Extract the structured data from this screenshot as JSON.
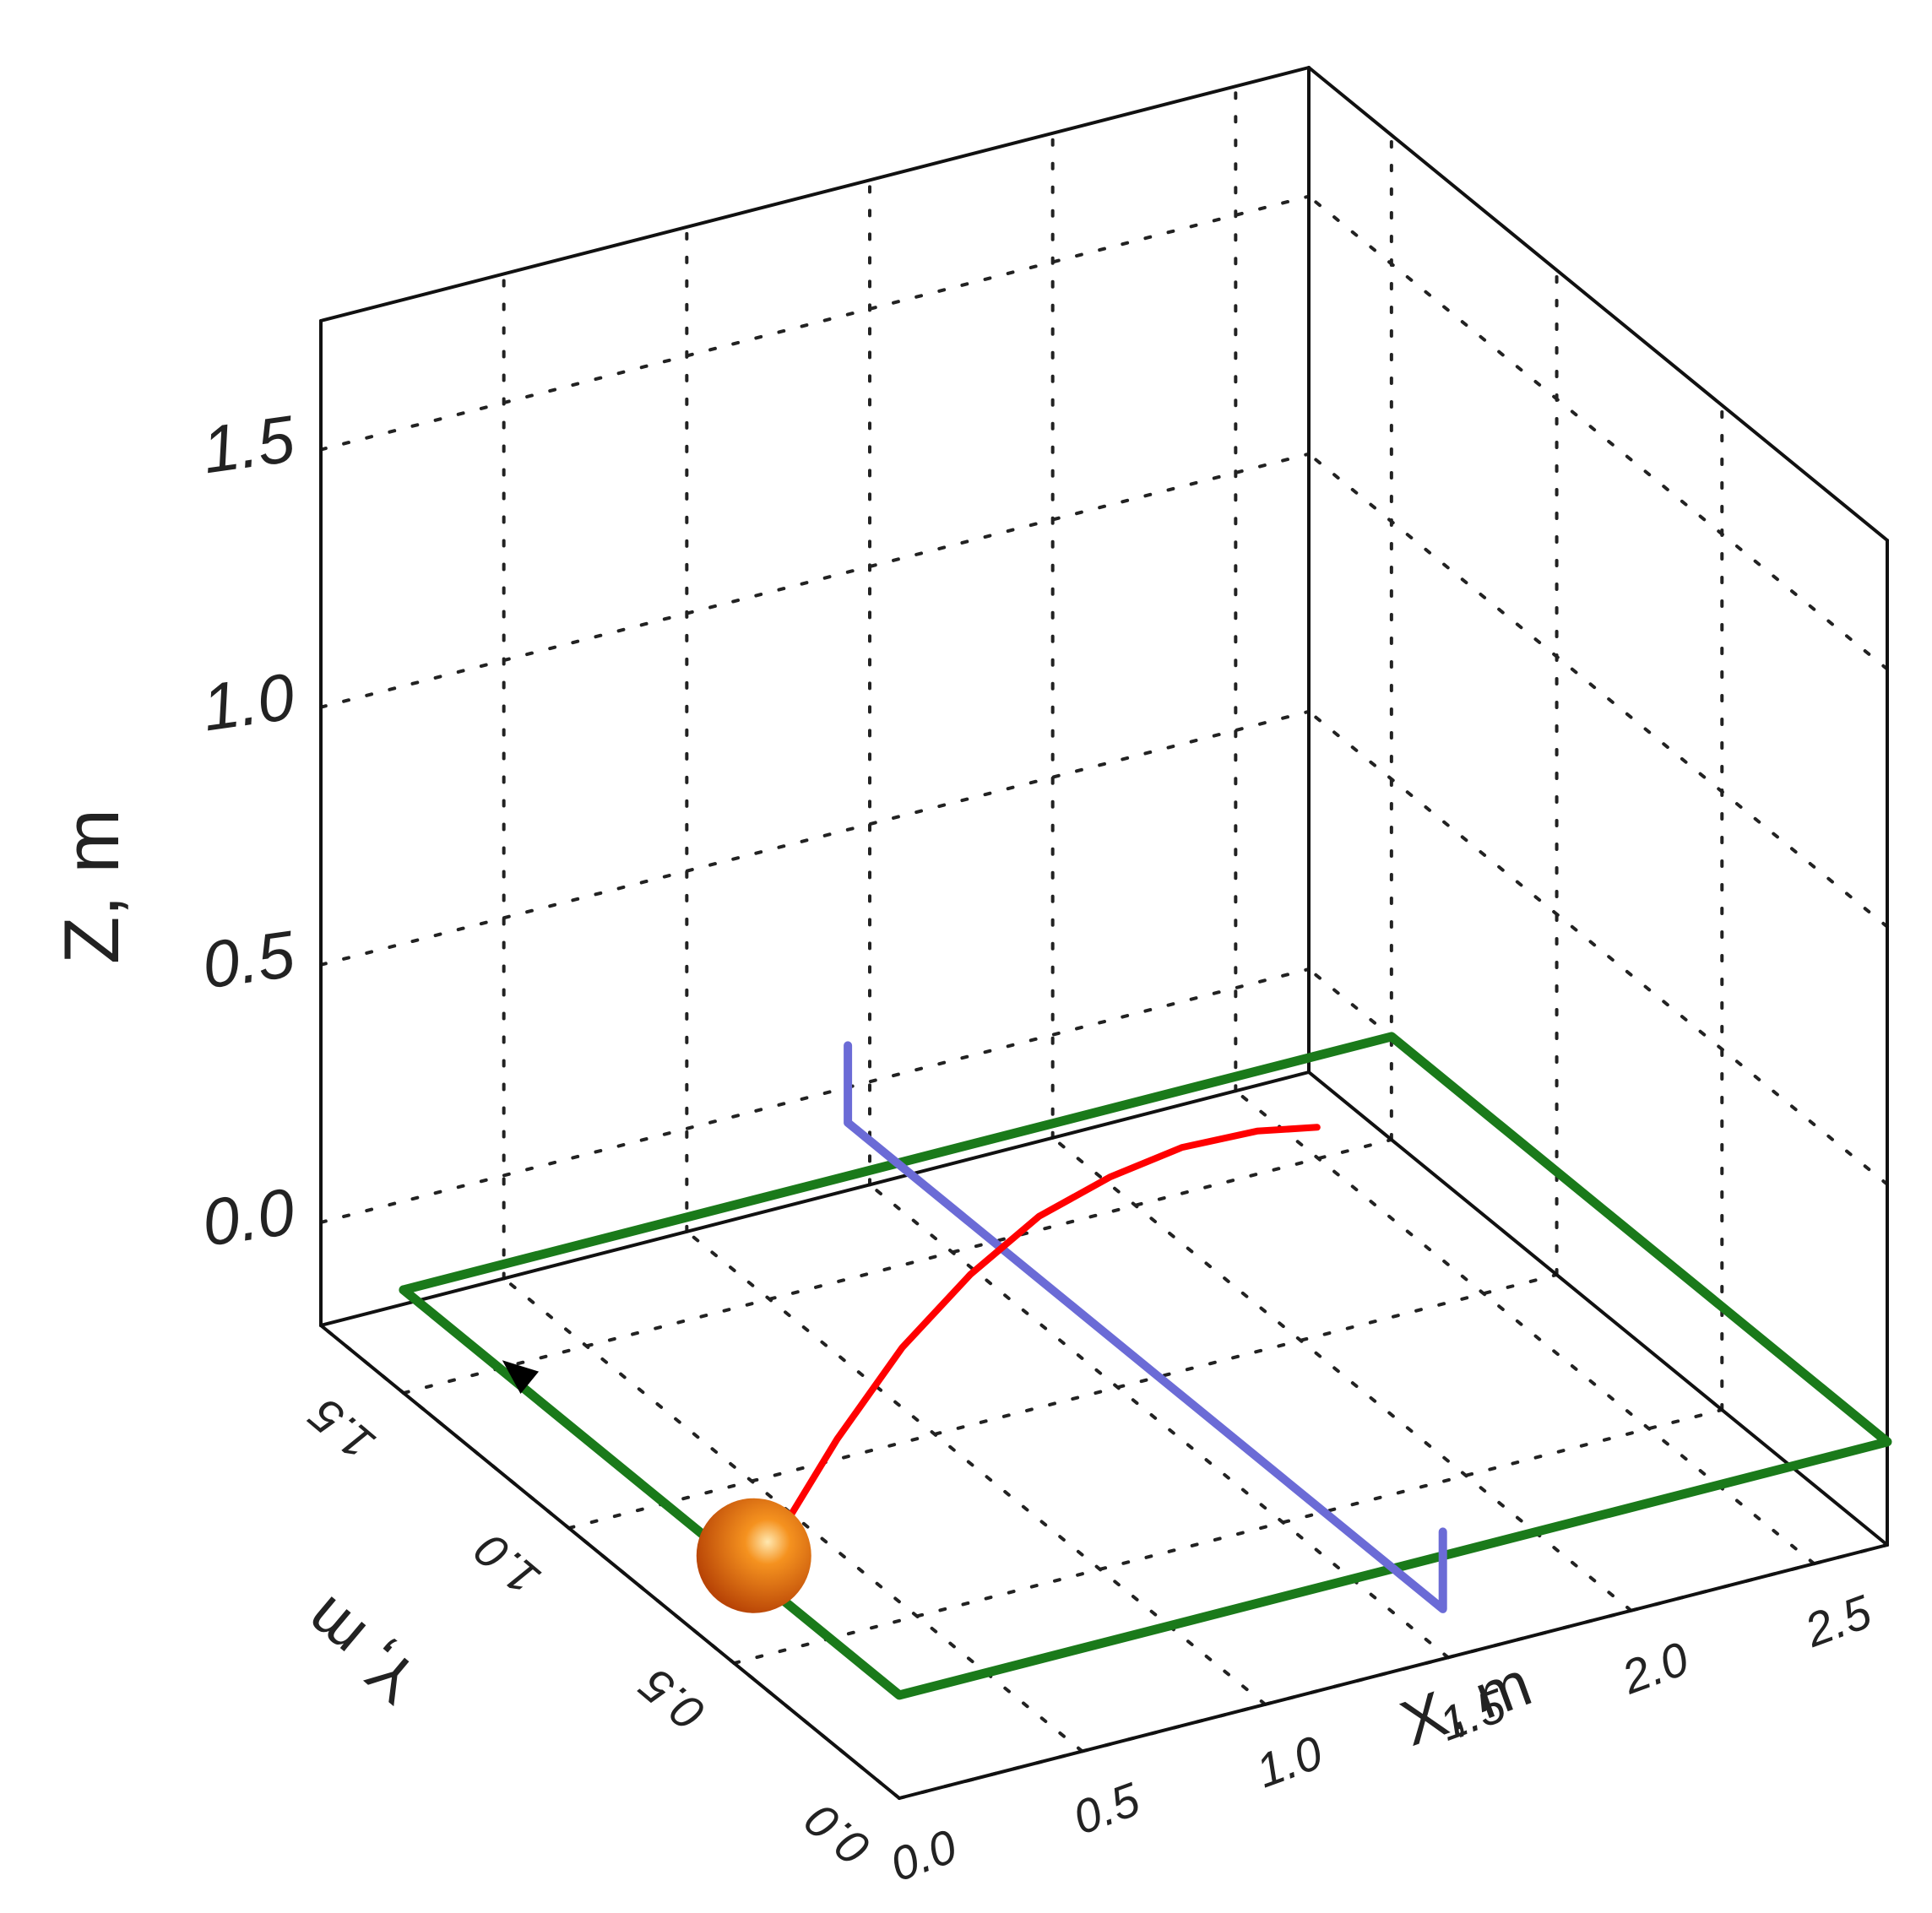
{
  "chart_data": {
    "type": "3d-line",
    "title": "",
    "xlabel": "X, m",
    "ylabel": "Y, m",
    "zlabel": "Z, m",
    "xlim": [
      0,
      2.7
    ],
    "ylim": [
      0,
      1.75
    ],
    "zlim": [
      -0.2,
      1.75
    ],
    "grid": true,
    "x_ticks": [
      {
        "value": 0.0,
        "label": "0.0"
      },
      {
        "value": 0.5,
        "label": "0.5"
      },
      {
        "value": 1.0,
        "label": "1.0"
      },
      {
        "value": 1.5,
        "label": "1.5"
      },
      {
        "value": 2.0,
        "label": "2.0"
      },
      {
        "value": 2.5,
        "label": "2.5"
      }
    ],
    "y_ticks": [
      {
        "value": 0.0,
        "label": "0.0"
      },
      {
        "value": 0.5,
        "label": "0.5"
      },
      {
        "value": 1.0,
        "label": "1.0"
      },
      {
        "value": 1.5,
        "label": "1.5"
      }
    ],
    "z_ticks": [
      {
        "value": 0.0,
        "label": "0.0"
      },
      {
        "value": 0.5,
        "label": "0.5"
      },
      {
        "value": 1.0,
        "label": "1.0"
      },
      {
        "value": 1.5,
        "label": "1.5"
      }
    ],
    "table_outline": {
      "color": "#1a7a1a",
      "points": [
        [
          0.0,
          1.5,
          0.0
        ],
        [
          2.7,
          1.5,
          0.0
        ],
        [
          2.7,
          0.0,
          0.0
        ],
        [
          0.0,
          0.0,
          0.0
        ]
      ]
    },
    "net": {
      "color": "#6b6bd6",
      "points": [
        [
          1.35,
          1.65,
          0.15
        ],
        [
          1.35,
          1.65,
          0.0
        ],
        [
          1.35,
          -0.15,
          0.0
        ],
        [
          1.35,
          -0.15,
          0.15
        ]
      ]
    },
    "trajectory": {
      "color": "#ff0000",
      "points": [
        [
          0.05,
          0.44,
          0.05
        ],
        [
          0.3,
          0.52,
          0.17
        ],
        [
          0.55,
          0.6,
          0.26
        ],
        [
          0.8,
          0.67,
          0.32
        ],
        [
          1.05,
          0.74,
          0.35
        ],
        [
          1.3,
          0.8,
          0.35
        ],
        [
          1.55,
          0.86,
          0.33
        ],
        [
          1.8,
          0.91,
          0.29
        ],
        [
          2.0,
          0.95,
          0.24
        ]
      ]
    },
    "ball": {
      "position": [
        0.0,
        0.44,
        0.04
      ],
      "color": "#e06a12"
    },
    "arrow": {
      "position": [
        0.0,
        1.15,
        0.02
      ],
      "color": "#000000"
    }
  }
}
